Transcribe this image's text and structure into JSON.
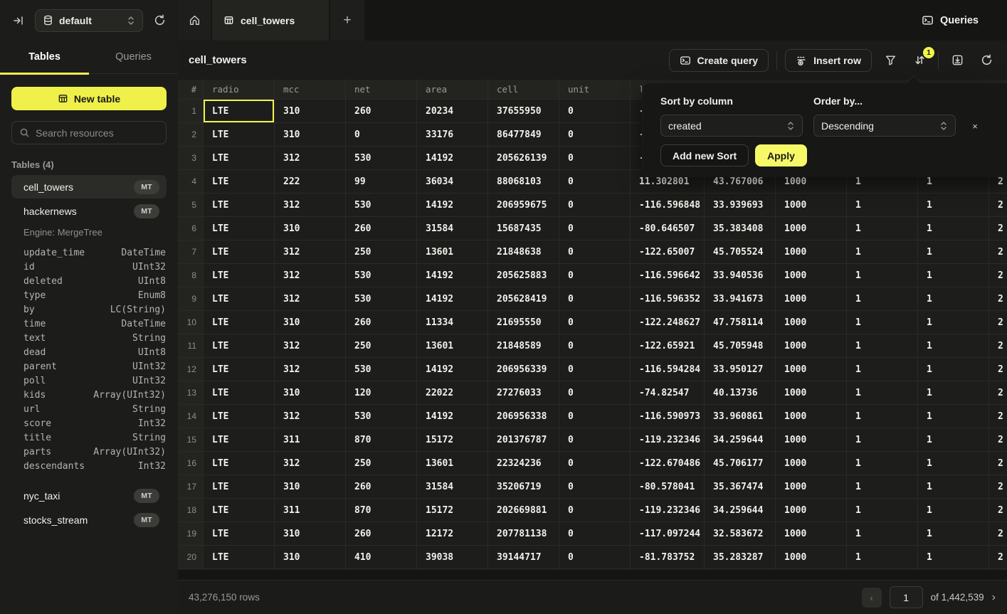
{
  "topbar": {
    "database": "default",
    "queries_label": "Queries"
  },
  "tabbar": {
    "active_tab": "cell_towers",
    "new_tab_label": "+"
  },
  "sidebar": {
    "tabs": [
      "Tables",
      "Queries"
    ],
    "new_table_label": "New table",
    "search_placeholder": "Search resources",
    "section_label": "Tables (4)",
    "items": [
      {
        "name": "cell_towers",
        "badge": "MT",
        "selected": true
      },
      {
        "name": "hackernews",
        "badge": "MT",
        "selected": false
      },
      {
        "name": "nyc_taxi",
        "badge": "MT",
        "selected": false
      },
      {
        "name": "stocks_stream",
        "badge": "MT",
        "selected": false
      }
    ],
    "hackernews_engine": "Engine: MergeTree",
    "hackernews_schema": [
      {
        "column": "update_time",
        "type": "DateTime"
      },
      {
        "column": "id",
        "type": "UInt32"
      },
      {
        "column": "deleted",
        "type": "UInt8"
      },
      {
        "column": "type",
        "type": "Enum8"
      },
      {
        "column": "by",
        "type": "LC(String)"
      },
      {
        "column": "time",
        "type": "DateTime"
      },
      {
        "column": "text",
        "type": "String"
      },
      {
        "column": "dead",
        "type": "UInt8"
      },
      {
        "column": "parent",
        "type": "UInt32"
      },
      {
        "column": "poll",
        "type": "UInt32"
      },
      {
        "column": "kids",
        "type": "Array(UInt32)"
      },
      {
        "column": "url",
        "type": "String"
      },
      {
        "column": "score",
        "type": "Int32"
      },
      {
        "column": "title",
        "type": "String"
      },
      {
        "column": "parts",
        "type": "Array(UInt32)"
      },
      {
        "column": "descendants",
        "type": "Int32"
      }
    ]
  },
  "main": {
    "title": "cell_towers",
    "create_query_label": "Create query",
    "insert_row_label": "Insert row",
    "sort_badge": "1"
  },
  "sort_popup": {
    "column_label": "Sort by column",
    "column_value": "created",
    "order_label": "Order by...",
    "order_value": "Descending",
    "add_sort_label": "Add new Sort",
    "apply_label": "Apply",
    "close_label": "×"
  },
  "table": {
    "headers": [
      "#",
      "radio",
      "mcc",
      "net",
      "area",
      "cell",
      "unit",
      "lon",
      "",
      "",
      "",
      "",
      ""
    ],
    "selected_cell": {
      "row": 1,
      "column": "radio"
    },
    "rows": [
      [
        "1",
        "LTE",
        "310",
        "260",
        "20234",
        "37655950",
        "0",
        "-",
        "",
        "",
        "",
        "",
        ""
      ],
      [
        "2",
        "LTE",
        "310",
        "0",
        "33176",
        "86477849",
        "0",
        "-",
        "",
        "",
        "",
        "",
        ""
      ],
      [
        "3",
        "LTE",
        "312",
        "530",
        "14192",
        "205626139",
        "0",
        "-",
        "",
        "",
        "",
        "",
        ""
      ],
      [
        "4",
        "LTE",
        "222",
        "99",
        "36034",
        "88068103",
        "0",
        "11.302801",
        "43.767006",
        "1000",
        "1",
        "1",
        "2"
      ],
      [
        "5",
        "LTE",
        "312",
        "530",
        "14192",
        "206959675",
        "0",
        "-116.596848",
        "33.939693",
        "1000",
        "1",
        "1",
        "2"
      ],
      [
        "6",
        "LTE",
        "310",
        "260",
        "31584",
        "15687435",
        "0",
        "-80.646507",
        "35.383408",
        "1000",
        "1",
        "1",
        "2"
      ],
      [
        "7",
        "LTE",
        "312",
        "250",
        "13601",
        "21848638",
        "0",
        "-122.65007",
        "45.705524",
        "1000",
        "1",
        "1",
        "2"
      ],
      [
        "8",
        "LTE",
        "312",
        "530",
        "14192",
        "205625883",
        "0",
        "-116.596642",
        "33.940536",
        "1000",
        "1",
        "1",
        "2"
      ],
      [
        "9",
        "LTE",
        "312",
        "530",
        "14192",
        "205628419",
        "0",
        "-116.596352",
        "33.941673",
        "1000",
        "1",
        "1",
        "2"
      ],
      [
        "10",
        "LTE",
        "310",
        "260",
        "11334",
        "21695550",
        "0",
        "-122.248627",
        "47.758114",
        "1000",
        "1",
        "1",
        "2"
      ],
      [
        "11",
        "LTE",
        "312",
        "250",
        "13601",
        "21848589",
        "0",
        "-122.65921",
        "45.705948",
        "1000",
        "1",
        "1",
        "2"
      ],
      [
        "12",
        "LTE",
        "312",
        "530",
        "14192",
        "206956339",
        "0",
        "-116.594284",
        "33.950127",
        "1000",
        "1",
        "1",
        "2"
      ],
      [
        "13",
        "LTE",
        "310",
        "120",
        "22022",
        "27276033",
        "0",
        "-74.82547",
        "40.13736",
        "1000",
        "1",
        "1",
        "2"
      ],
      [
        "14",
        "LTE",
        "312",
        "530",
        "14192",
        "206956338",
        "0",
        "-116.590973",
        "33.960861",
        "1000",
        "1",
        "1",
        "2"
      ],
      [
        "15",
        "LTE",
        "311",
        "870",
        "15172",
        "201376787",
        "0",
        "-119.232346",
        "34.259644",
        "1000",
        "1",
        "1",
        "2"
      ],
      [
        "16",
        "LTE",
        "312",
        "250",
        "13601",
        "22324236",
        "0",
        "-122.670486",
        "45.706177",
        "1000",
        "1",
        "1",
        "2"
      ],
      [
        "17",
        "LTE",
        "310",
        "260",
        "31584",
        "35206719",
        "0",
        "-80.578041",
        "35.367474",
        "1000",
        "1",
        "1",
        "2"
      ],
      [
        "18",
        "LTE",
        "311",
        "870",
        "15172",
        "202669881",
        "0",
        "-119.232346",
        "34.259644",
        "1000",
        "1",
        "1",
        "2"
      ],
      [
        "19",
        "LTE",
        "310",
        "260",
        "12172",
        "207781138",
        "0",
        "-117.097244",
        "32.583672",
        "1000",
        "1",
        "1",
        "2"
      ],
      [
        "20",
        "LTE",
        "310",
        "410",
        "39038",
        "39144717",
        "0",
        "-81.783752",
        "35.283287",
        "1000",
        "1",
        "1",
        "2"
      ]
    ]
  },
  "footer": {
    "rows_label": "43,276,150 rows",
    "page_value": "1",
    "of_label": "of 1,442,539",
    "prev_label": "‹",
    "next_label": "›"
  }
}
